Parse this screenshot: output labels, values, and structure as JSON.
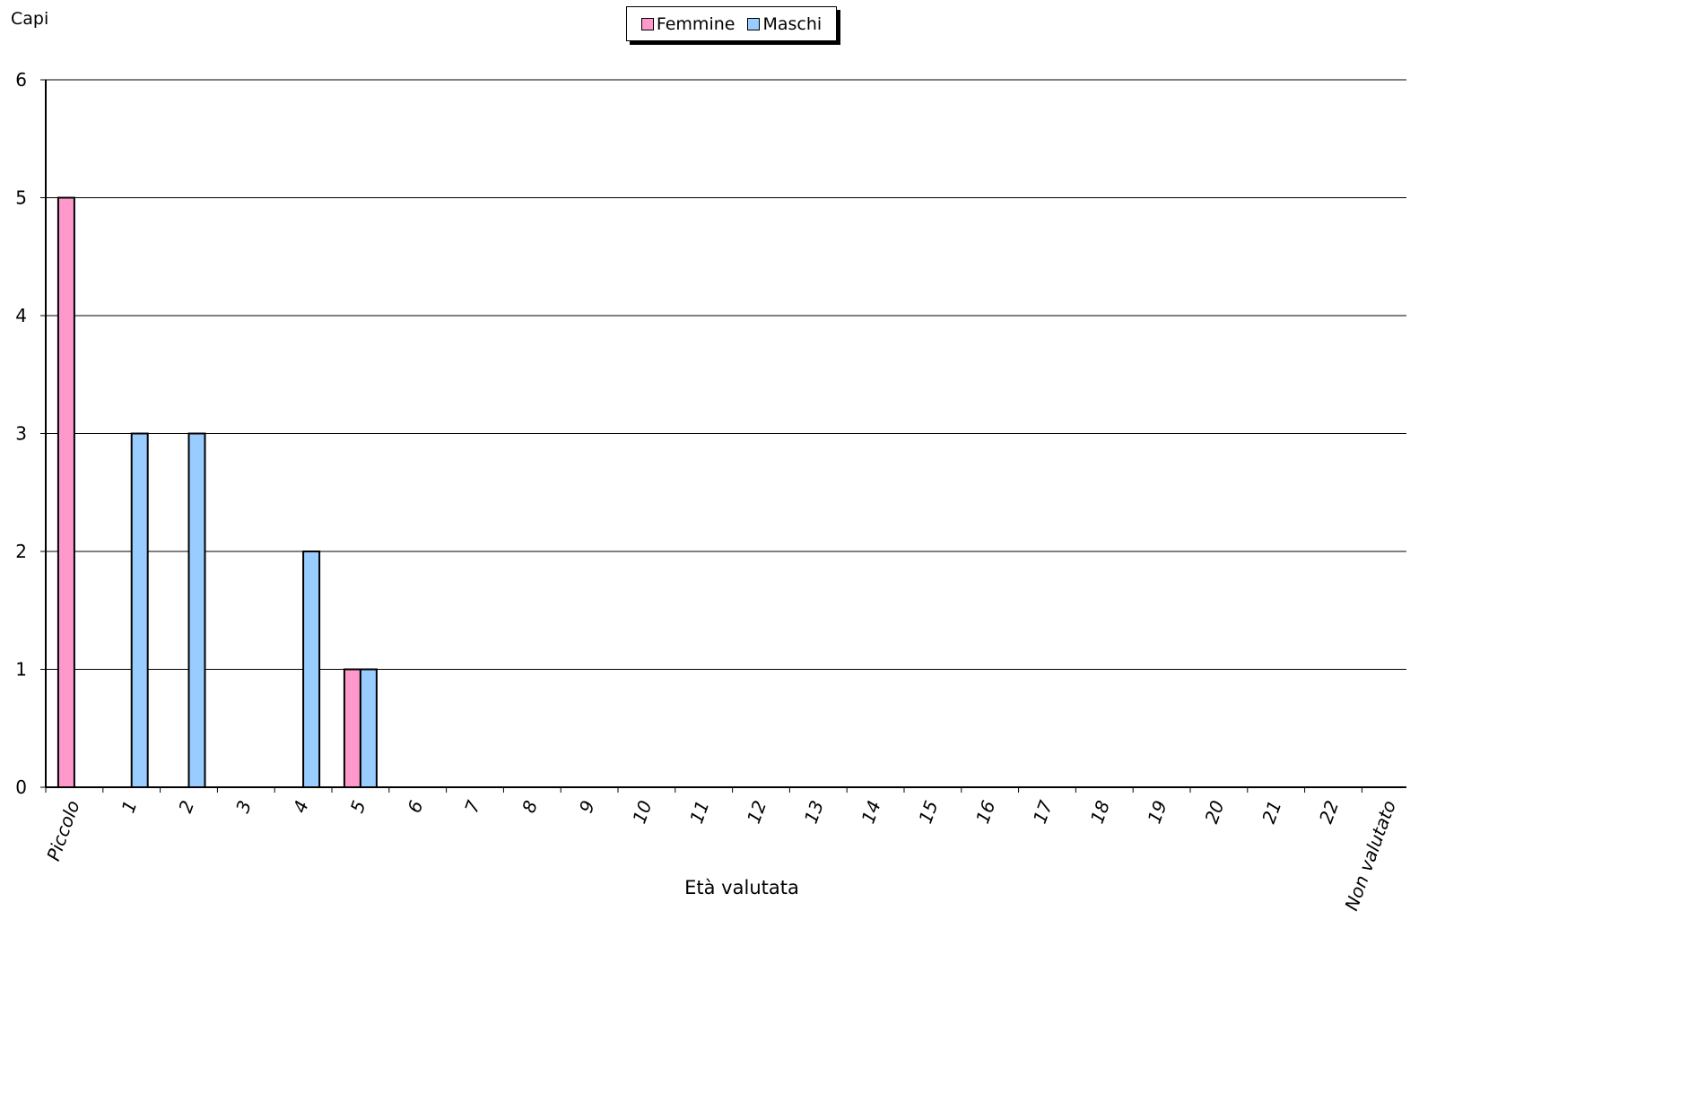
{
  "chart_data": {
    "type": "bar",
    "title": "",
    "xlabel": "Età valutata",
    "ylabel": "Capi",
    "ylim": [
      0,
      6
    ],
    "yticks": [
      0,
      1,
      2,
      3,
      4,
      5,
      6
    ],
    "grid": true,
    "legend_position": "top-center",
    "categories": [
      "Piccolo",
      "1",
      "2",
      "3",
      "4",
      "5",
      "6",
      "7",
      "8",
      "9",
      "10",
      "11",
      "12",
      "13",
      "14",
      "15",
      "16",
      "17",
      "18",
      "19",
      "20",
      "21",
      "22",
      "Non valutato"
    ],
    "series": [
      {
        "name": "Femmine",
        "color": "#ff99cc",
        "values": [
          5,
          0,
          0,
          0,
          0,
          1,
          0,
          0,
          0,
          0,
          0,
          0,
          0,
          0,
          0,
          0,
          0,
          0,
          0,
          0,
          0,
          0,
          0,
          0
        ]
      },
      {
        "name": "Maschi",
        "color": "#99ccff",
        "values": [
          0,
          3,
          3,
          0,
          2,
          1,
          0,
          0,
          0,
          0,
          0,
          0,
          0,
          0,
          0,
          0,
          0,
          0,
          0,
          0,
          0,
          0,
          0,
          0
        ]
      }
    ]
  }
}
